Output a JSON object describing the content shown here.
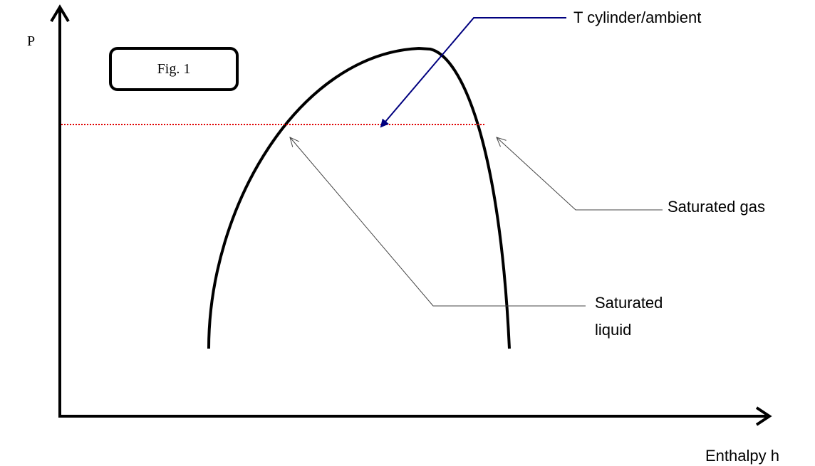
{
  "diagram": {
    "axes": {
      "y_label": "P",
      "x_label": "Enthalpy h"
    },
    "figure_label": "Fig. 1",
    "annotations": {
      "temperature_line": "T cylinder/ambient",
      "saturated_gas": "Saturated gas",
      "saturated_liquid": [
        "Saturated",
        "liquid"
      ]
    }
  }
}
